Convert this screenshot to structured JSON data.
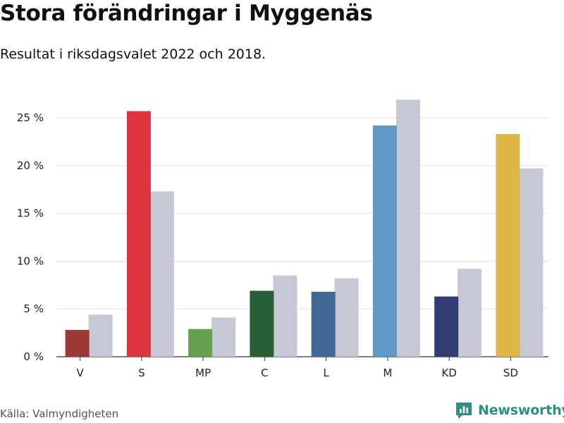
{
  "header": {
    "title": "Stora förändringar i Myggenäs",
    "subtitle": "Resultat i riksdagsvalet 2022 och 2018."
  },
  "footer": {
    "source": "Källa: Valmyndigheten",
    "brand": "Newsworthy",
    "brand_color": "#2f8f83"
  },
  "chart_data": {
    "type": "bar",
    "title": "",
    "xlabel": "",
    "ylabel": "",
    "ylim": [
      0,
      27
    ],
    "yticks": [
      0,
      5,
      10,
      15,
      20,
      25
    ],
    "ytick_suffix": " %",
    "grid": true,
    "categories": [
      "V",
      "S",
      "MP",
      "C",
      "L",
      "M",
      "KD",
      "SD"
    ],
    "series": [
      {
        "values": [
          2.8,
          25.7,
          2.9,
          6.9,
          6.8,
          24.2,
          6.3,
          23.3
        ],
        "colors": [
          "#9b3a35",
          "#dc3540",
          "#64a04e",
          "#285f35",
          "#426895",
          "#6098c8",
          "#313c72",
          "#dfb547"
        ]
      },
      {
        "values": [
          4.4,
          17.3,
          4.1,
          8.5,
          8.2,
          26.9,
          9.2,
          19.7
        ],
        "color": "#c8c7d5"
      }
    ]
  }
}
